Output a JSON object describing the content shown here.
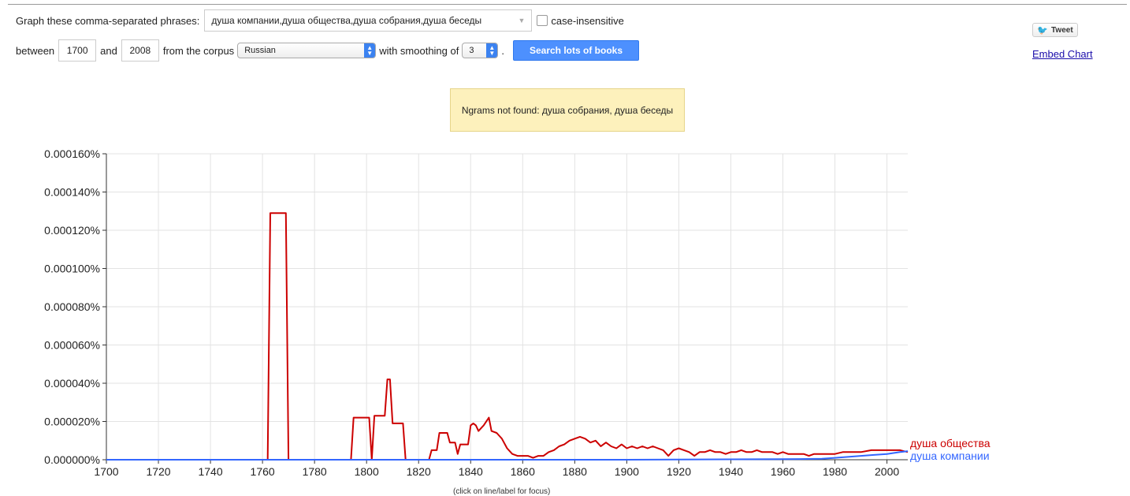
{
  "form": {
    "graph_label": "Graph these comma-separated phrases:",
    "phrases_value": "душа компании,душа общества,душа собрания,душа беседы",
    "case_label": "case-insensitive",
    "between_label": "between",
    "year_start": "1700",
    "and_label": "and",
    "year_end": "2008",
    "corpus_label": "from the corpus",
    "corpus_value": "Russian",
    "smoothing_label": "with smoothing of",
    "smoothing_value": "3",
    "search_label": "Search lots of books"
  },
  "social": {
    "tweet_label": "Tweet",
    "embed_label": "Embed Chart"
  },
  "notice": "Ngrams not found: душа собрания, душа беседы",
  "hint": "(click on line/label for focus)",
  "colors": {
    "red": "#cc0000",
    "blue": "#3366ff",
    "grid": "#e3e3e3",
    "button": "#4d90fe",
    "notice_bg": "#fdf1bc"
  },
  "chart_data": {
    "type": "line",
    "xlim": [
      1700,
      2008
    ],
    "ylim": [
      0,
      1.6e-06
    ],
    "x_ticks": [
      1700,
      1720,
      1740,
      1760,
      1780,
      1800,
      1820,
      1840,
      1860,
      1880,
      1900,
      1920,
      1940,
      1960,
      1980,
      2000
    ],
    "y_ticks": [
      "0.000000%",
      "0.000020%",
      "0.000040%",
      "0.000060%",
      "0.000080%",
      "0.000100%",
      "0.000120%",
      "0.000140%",
      "0.000160%"
    ],
    "y_tick_values": [
      0,
      2e-07,
      4e-07,
      6e-07,
      8e-07,
      1e-06,
      1.2e-06,
      1.4e-06,
      1.6e-06
    ],
    "grid": true,
    "series": [
      {
        "name": "душа общества",
        "color": "#cc0000",
        "points": [
          [
            1700,
            0
          ],
          [
            1762,
            0
          ],
          [
            1763,
            1.29e-06
          ],
          [
            1769,
            1.29e-06
          ],
          [
            1770,
            0
          ],
          [
            1794,
            0
          ],
          [
            1795,
            2.2e-07
          ],
          [
            1801,
            2.2e-07
          ],
          [
            1802,
            0
          ],
          [
            1803,
            2.3e-07
          ],
          [
            1807,
            2.3e-07
          ],
          [
            1808,
            4.2e-07
          ],
          [
            1809,
            4.2e-07
          ],
          [
            1810,
            1.9e-07
          ],
          [
            1814,
            1.9e-07
          ],
          [
            1815,
            0
          ],
          [
            1824,
            0
          ],
          [
            1825,
            5e-08
          ],
          [
            1827,
            5e-08
          ],
          [
            1828,
            1.4e-07
          ],
          [
            1831,
            1.4e-07
          ],
          [
            1832,
            9e-08
          ],
          [
            1834,
            9e-08
          ],
          [
            1835,
            3e-08
          ],
          [
            1836,
            8e-08
          ],
          [
            1839,
            8e-08
          ],
          [
            1840,
            1.8e-07
          ],
          [
            1841,
            1.9e-07
          ],
          [
            1842,
            1.8e-07
          ],
          [
            1843,
            1.5e-07
          ],
          [
            1845,
            1.8e-07
          ],
          [
            1847,
            2.2e-07
          ],
          [
            1848,
            1.5e-07
          ],
          [
            1850,
            1.4e-07
          ],
          [
            1852,
            1.1e-07
          ],
          [
            1854,
            6e-08
          ],
          [
            1856,
            3e-08
          ],
          [
            1858,
            2e-08
          ],
          [
            1860,
            2e-08
          ],
          [
            1862,
            2e-08
          ],
          [
            1864,
            1e-08
          ],
          [
            1866,
            2e-08
          ],
          [
            1868,
            2e-08
          ],
          [
            1870,
            4e-08
          ],
          [
            1872,
            5e-08
          ],
          [
            1874,
            7e-08
          ],
          [
            1876,
            8e-08
          ],
          [
            1878,
            1e-07
          ],
          [
            1880,
            1.1e-07
          ],
          [
            1882,
            1.2e-07
          ],
          [
            1884,
            1.1e-07
          ],
          [
            1886,
            9e-08
          ],
          [
            1888,
            1e-07
          ],
          [
            1890,
            7e-08
          ],
          [
            1892,
            9e-08
          ],
          [
            1894,
            7e-08
          ],
          [
            1896,
            6e-08
          ],
          [
            1898,
            8e-08
          ],
          [
            1900,
            6e-08
          ],
          [
            1902,
            7e-08
          ],
          [
            1904,
            6e-08
          ],
          [
            1906,
            7e-08
          ],
          [
            1908,
            6e-08
          ],
          [
            1910,
            7e-08
          ],
          [
            1912,
            6e-08
          ],
          [
            1914,
            5e-08
          ],
          [
            1916,
            2e-08
          ],
          [
            1918,
            5e-08
          ],
          [
            1920,
            6e-08
          ],
          [
            1922,
            5e-08
          ],
          [
            1924,
            4e-08
          ],
          [
            1926,
            2e-08
          ],
          [
            1928,
            4e-08
          ],
          [
            1930,
            4e-08
          ],
          [
            1932,
            5e-08
          ],
          [
            1934,
            4e-08
          ],
          [
            1936,
            4e-08
          ],
          [
            1938,
            3e-08
          ],
          [
            1940,
            4e-08
          ],
          [
            1942,
            4e-08
          ],
          [
            1944,
            5e-08
          ],
          [
            1946,
            4e-08
          ],
          [
            1948,
            4e-08
          ],
          [
            1950,
            5e-08
          ],
          [
            1952,
            4e-08
          ],
          [
            1954,
            4e-08
          ],
          [
            1956,
            4e-08
          ],
          [
            1958,
            3e-08
          ],
          [
            1960,
            4e-08
          ],
          [
            1962,
            3e-08
          ],
          [
            1964,
            3e-08
          ],
          [
            1966,
            3e-08
          ],
          [
            1968,
            3e-08
          ],
          [
            1970,
            2e-08
          ],
          [
            1972,
            3e-08
          ],
          [
            1975,
            3e-08
          ],
          [
            1978,
            3e-08
          ],
          [
            1980,
            3e-08
          ],
          [
            1983,
            4e-08
          ],
          [
            1986,
            4e-08
          ],
          [
            1990,
            4e-08
          ],
          [
            1994,
            5e-08
          ],
          [
            1998,
            5e-08
          ],
          [
            2002,
            5e-08
          ],
          [
            2005,
            5e-08
          ],
          [
            2008,
            4e-08
          ]
        ]
      },
      {
        "name": "душа компании",
        "color": "#3366ff",
        "points": [
          [
            1700,
            0
          ],
          [
            1900,
            0
          ],
          [
            1960,
            3e-09
          ],
          [
            1975,
            5e-09
          ],
          [
            1980,
            1e-08
          ],
          [
            1985,
            1.5e-08
          ],
          [
            1990,
            2e-08
          ],
          [
            1995,
            2.5e-08
          ],
          [
            2000,
            3e-08
          ],
          [
            2005,
            4e-08
          ],
          [
            2008,
            4.5e-08
          ]
        ]
      }
    ]
  }
}
